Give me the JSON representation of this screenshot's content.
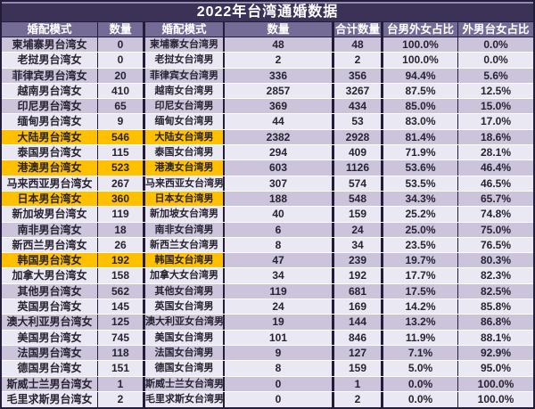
{
  "title": "2022年台湾通婚数据",
  "chart_data": {
    "type": "table",
    "title": "2022年台湾通婚数据",
    "columns": [
      "婚配模式",
      "数量",
      "婚配模式",
      "数量",
      "合计数量",
      "台男外女占比",
      "外男台女占比"
    ],
    "rows": [
      {
        "cells": [
          "柬埔寨男台湾女",
          "0",
          "柬埔寨女台湾男",
          "48",
          "48",
          "100.0%",
          "0.0%"
        ],
        "highlight": false
      },
      {
        "cells": [
          "老挝男台湾女",
          "0",
          "老挝女台湾男",
          "2",
          "2",
          "100.0%",
          "0.0%"
        ],
        "highlight": false
      },
      {
        "cells": [
          "菲律宾男台湾女",
          "20",
          "菲律宾女台湾男",
          "336",
          "356",
          "94.4%",
          "5.6%"
        ],
        "highlight": false
      },
      {
        "cells": [
          "越南男台湾女",
          "410",
          "越南女台湾男",
          "2857",
          "3267",
          "87.5%",
          "12.5%"
        ],
        "highlight": false
      },
      {
        "cells": [
          "印尼男台湾女",
          "65",
          "印尼女台湾男",
          "369",
          "434",
          "85.0%",
          "15.0%"
        ],
        "highlight": false
      },
      {
        "cells": [
          "缅甸男台湾女",
          "9",
          "缅甸女台湾男",
          "44",
          "53",
          "83.0%",
          "17.0%"
        ],
        "highlight": false
      },
      {
        "cells": [
          "大陆男台湾女",
          "546",
          "大陆女台湾男",
          "2382",
          "2928",
          "81.4%",
          "18.6%"
        ],
        "highlight": true
      },
      {
        "cells": [
          "泰国男台湾女",
          "115",
          "泰国女台湾男",
          "294",
          "409",
          "71.9%",
          "28.1%"
        ],
        "highlight": false
      },
      {
        "cells": [
          "港澳男台湾女",
          "523",
          "港澳女台湾男",
          "603",
          "1126",
          "53.6%",
          "46.4%"
        ],
        "highlight": true
      },
      {
        "cells": [
          "马来西亚男台湾女",
          "267",
          "马来西亚女台湾男",
          "307",
          "574",
          "53.5%",
          "46.5%"
        ],
        "highlight": false
      },
      {
        "cells": [
          "日本男台湾女",
          "360",
          "日本女台湾男",
          "188",
          "548",
          "34.3%",
          "65.7%"
        ],
        "highlight": true
      },
      {
        "cells": [
          "新加坡男台湾女",
          "119",
          "新加坡女台湾男",
          "40",
          "159",
          "25.2%",
          "74.8%"
        ],
        "highlight": false
      },
      {
        "cells": [
          "南非男台湾女",
          "18",
          "南非女台湾男",
          "6",
          "24",
          "25.0%",
          "75.0%"
        ],
        "highlight": false
      },
      {
        "cells": [
          "新西兰男台湾女",
          "26",
          "新西兰女台湾男",
          "8",
          "34",
          "23.5%",
          "76.5%"
        ],
        "highlight": false
      },
      {
        "cells": [
          "韩国男台湾女",
          "192",
          "韩国女台湾男",
          "47",
          "239",
          "19.7%",
          "80.3%"
        ],
        "highlight": true
      },
      {
        "cells": [
          "加拿大男台湾女",
          "158",
          "加拿大女台湾男",
          "34",
          "192",
          "17.7%",
          "82.3%"
        ],
        "highlight": false
      },
      {
        "cells": [
          "其他男台湾女",
          "562",
          "其他女台湾男",
          "119",
          "681",
          "17.5%",
          "82.5%"
        ],
        "highlight": false
      },
      {
        "cells": [
          "英国男台湾女",
          "145",
          "英国女台湾男",
          "24",
          "169",
          "14.2%",
          "85.8%"
        ],
        "highlight": false
      },
      {
        "cells": [
          "澳大利亚男台湾女",
          "125",
          "澳大利亚女台湾男",
          "19",
          "144",
          "13.2%",
          "86.8%"
        ],
        "highlight": false
      },
      {
        "cells": [
          "美国男台湾女",
          "745",
          "美国女台湾男",
          "101",
          "846",
          "11.9%",
          "88.1%"
        ],
        "highlight": false
      },
      {
        "cells": [
          "法国男台湾女",
          "118",
          "法国女台湾男",
          "9",
          "127",
          "7.1%",
          "92.9%"
        ],
        "highlight": false
      },
      {
        "cells": [
          "德国男台湾女",
          "151",
          "德国女台湾男",
          "8",
          "159",
          "5.0%",
          "95.0%"
        ],
        "highlight": false
      },
      {
        "cells": [
          "斯威士兰男台湾女",
          "1",
          "斯威士兰女台湾男",
          "0",
          "1",
          "0.0%",
          "100.0%"
        ],
        "highlight": false
      },
      {
        "cells": [
          "毛里求斯男台湾女",
          "2",
          "毛里求斯女台湾男",
          "0",
          "2",
          "0.0%",
          "100.0%"
        ],
        "highlight": false
      }
    ]
  },
  "colors": {
    "title_bg": "#3c3258",
    "header_bg": "#746b96",
    "row_odd": "#cbc4da",
    "row_even": "#eae8f2",
    "highlight": "#ffc000",
    "border_dark": "#241d3a",
    "text_dark": "#282332"
  }
}
